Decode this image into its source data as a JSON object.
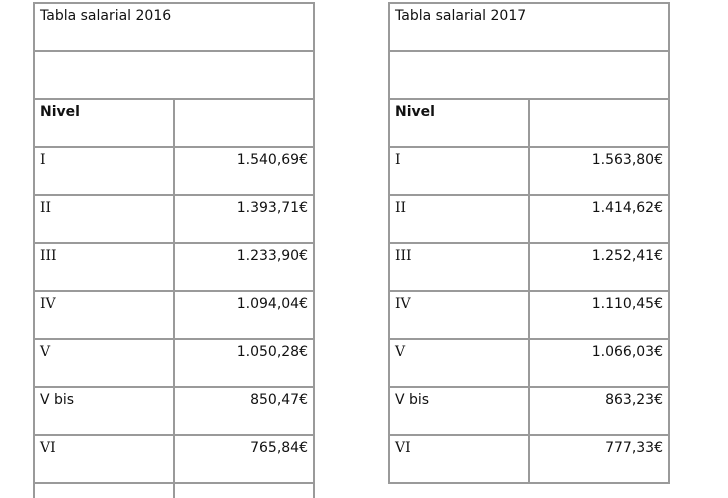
{
  "tables": [
    {
      "title": "Tabla salarial 2016",
      "header": "Nivel",
      "rows": [
        {
          "level": "I",
          "salary": "1.540,69€"
        },
        {
          "level": "II",
          "salary": "1.393,71€"
        },
        {
          "level": "III",
          "salary": "1.233,90€"
        },
        {
          "level": "IV",
          "salary": "1.094,04€"
        },
        {
          "level": "V",
          "salary": "1.050,28€"
        },
        {
          "level": "V bis",
          "salary": "850,47€"
        },
        {
          "level": "VI",
          "salary": "765,84€"
        }
      ]
    },
    {
      "title": "Tabla salarial 2017",
      "header": "Nivel",
      "rows": [
        {
          "level": "I",
          "salary": "1.563,80€"
        },
        {
          "level": "II",
          "salary": "1.414,62€"
        },
        {
          "level": "III",
          "salary": "1.252,41€"
        },
        {
          "level": "IV",
          "salary": "1.110,45€"
        },
        {
          "level": "V",
          "salary": "1.066,03€"
        },
        {
          "level": "V bis",
          "salary": "863,23€"
        },
        {
          "level": "VI",
          "salary": "777,33€"
        }
      ]
    }
  ]
}
